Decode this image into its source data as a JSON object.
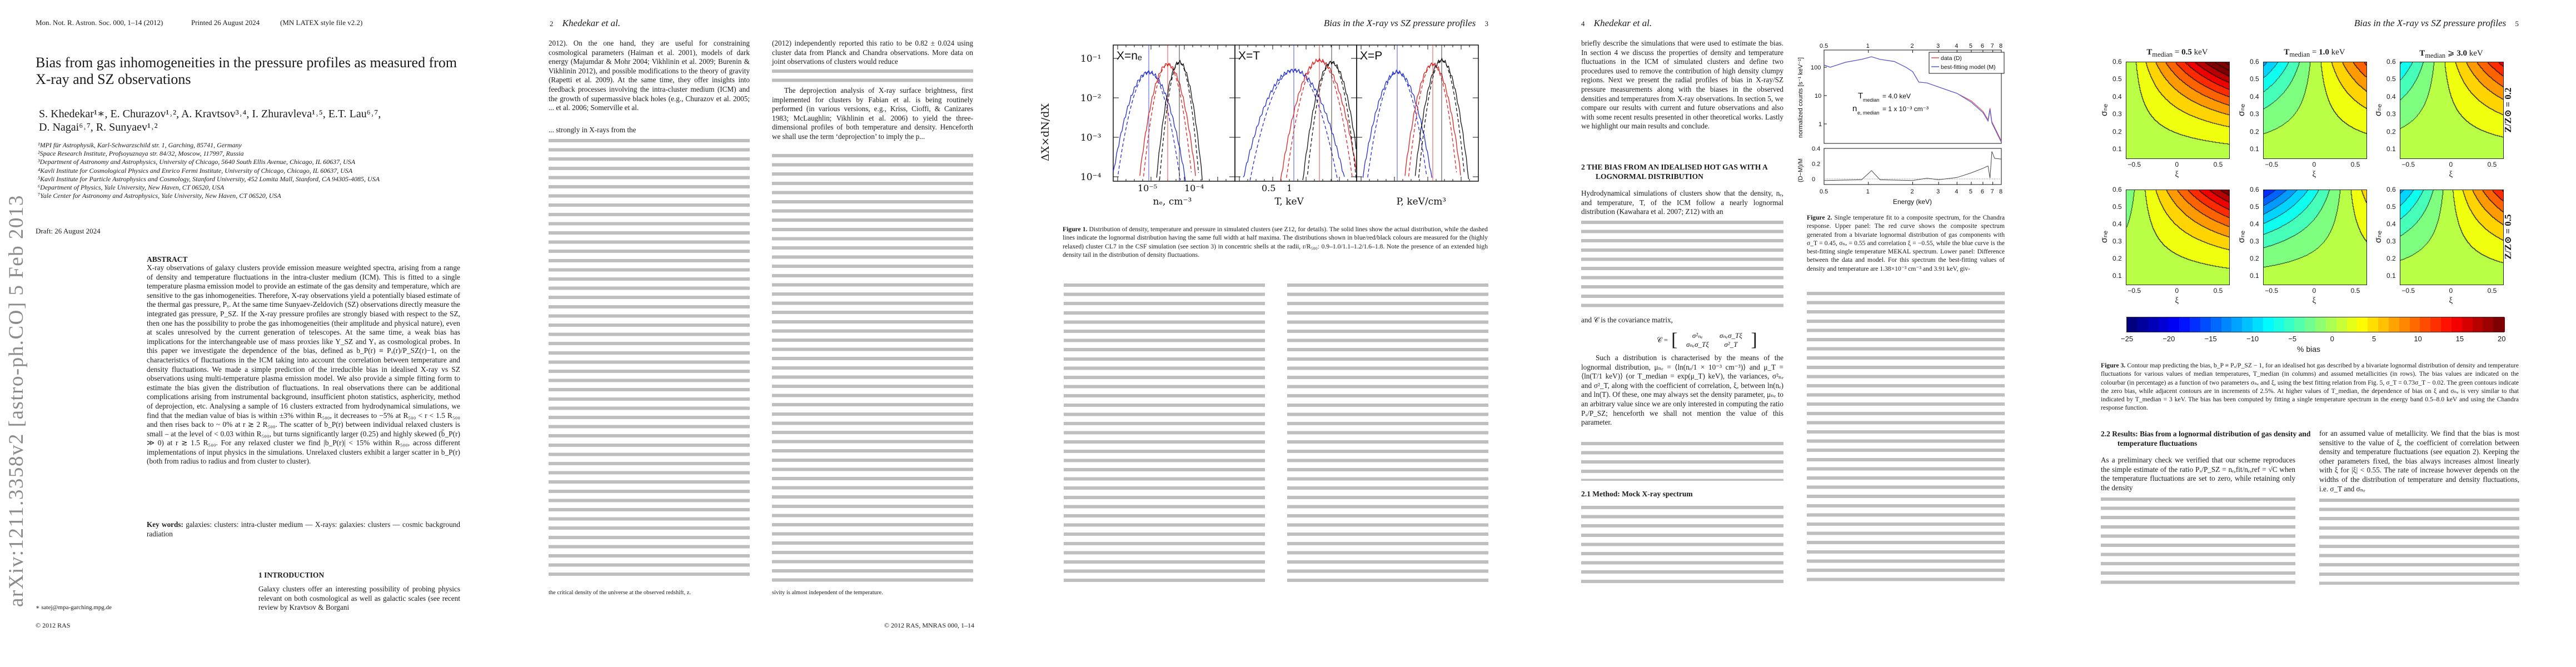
{
  "page1": {
    "journal_line": "Mon. Not. R. Astron. Soc. 000, 1–14 (2012)",
    "printed": "Printed 26 August 2024",
    "style": "(MN LATEX style file v2.2)",
    "title": "Bias from gas inhomogeneities in the pressure profiles as measured from X-ray and SZ observations",
    "authors_line1": "S. Khedekar¹∗, E. Churazov¹˒², A. Kravtsov³˒⁴, I. Zhuravleva¹˒⁵, E.T. Lau⁶˒⁷,",
    "authors_line2": "D. Nagai⁶˒⁷, R. Sunyaev¹˒²",
    "affiliations": [
      "¹MPI für Astrophysik, Karl-Schwarzschild str. 1, Garching, 85741, Germany",
      "²Space Research Institute, Profsoyuznaya str. 84/32, Moscow, 117997, Russia",
      "³Department of Astronomy and Astrophysics, University of Chicago, 5640 South Ellis Avenue, Chicago, IL 60637, USA",
      "⁴Kavli Institute for Cosmological Physics and Enrico Fermi Institute, University of Chicago, Chicago, IL 60637, USA",
      "⁵Kavli Institute for Particle Astrophysics and Cosmology, Stanford University, 452 Lomita Mall, Stanford, CA 94305-4085, USA",
      "⁶Department of Physics, Yale University, New Haven, CT 06520, USA",
      "⁷Yale Center for Astronomy and Astrophysics, Yale University, New Haven, CT 06520, USA"
    ],
    "draft": "Draft: 26 August 2024",
    "arxiv_stamp": "arXiv:1211.3358v2  [astro-ph.CO]  5 Feb 2013",
    "abstract_heading": "ABSTRACT",
    "abstract": "X-ray observations of galaxy clusters provide emission measure weighted spectra, arising from a range of density and temperature fluctuations in the intra-cluster medium (ICM). This is fitted to a single temperature plasma emission model to provide an estimate of the gas density and temperature, which are sensitive to the gas inhomogeneities. Therefore, X-ray observations yield a potentially biased estimate of the thermal gas pressure, Pₓ. At the same time Sunyaev-Zeldovich (SZ) observations directly measure the integrated gas pressure, P_SZ. If the X-ray pressure profiles are strongly biased with respect to the SZ, then one has the possibility to probe the gas inhomogeneities (their amplitude and physical nature), even at scales unresolved by the current generation of telescopes. At the same time, a weak bias has implications for the interchangeable use of mass proxies like Y_SZ and Yₓ as cosmological probes. In this paper we investigate the dependence of the bias, defined as b_P(r) ≡ Pₓ(r)/P_SZ(r)−1, on the characteristics of fluctuations in the ICM taking into account the correlation between temperature and density fluctuations. We made a simple prediction of the irreducible bias in idealised X-ray vs SZ observations using multi-temperature plasma emission model. We also provide a simple fitting form to estimate the bias given the distribution of fluctuations. In real observations there can be additional complications arising from instrumental background, insufficient photon statistics, asphericity, method of deprojection, etc. Analysing a sample of 16 clusters extracted from hydrodynamical simulations, we find that the median value of bias is within ±3% within R₅₀₀, it decreases to −5% at R₅₀₀ < r < 1.5 R₅₀₀ and then rises back to ~ 0% at r ≳ 2 R₅₀₀. The scatter of b_P(r) between individual relaxed clusters is small – at the level of < 0.03 within R₅₀₀, but turns significantly larger (0.25) and highly skewed (b̄_P(r) ≫ 0) at r ≳ 1.5 R₅₀₀. For any relaxed cluster we find |b_P(r)| < 15% within R₅₀₀, across different implementations of input physics in the simulations. Unrelaxed clusters exhibit a larger scatter in b_P(r) (both from radius to radius and from cluster to cluster).",
    "keywords_label": "Key words:",
    "keywords": "galaxies: clusters: intra-cluster medium — X-rays: galaxies: clusters — cosmic background radiation",
    "intro_heading": "1   INTRODUCTION",
    "intro_text": "Galaxy clusters offer an interesting possibility of probing physics relevant on both cosmological as well as galactic scales (see recent review by Kravtsov & Borgani",
    "email": "∗ satej@mpa-garching.mpg.de",
    "copyright": "© 2012 RAS"
  },
  "page2": {
    "page_number": "2",
    "running_head": "Khedekar et al.",
    "left_col": "2012). On the one hand, they are useful for constraining cosmological parameters (Haiman et al. 2001), models of dark energy (Majumdar & Mohr 2004; Vikhlinin et al. 2009; Burenin & Vikhlinin 2012), and possible modifications to the theory of gravity (Rapetti et al. 2009). At the same time, they offer insights into feedback processes involving the intra-cluster medium (ICM) and the growth of supermassive black holes (e.g., Churazov et al. 2005; ... et al. 2006; Somerville et al.",
    "left_col_2": "... strongly in X-rays from the",
    "right_col": "(2012) independently reported this ratio to be 0.82 ± 0.024 using cluster data from Planck and Chandra observations. More data on joint observations of clusters would reduce",
    "right_col_2": "The deprojection analysis of X-ray surface brightness, first implemented for clusters by Fabian et al. is being routinely performed (in various versions, e.g., Kriss, Cioffi, & Canizares 1983; McLaughlin; Vikhlinin et al. 2006) to yield the three-dimensional profiles of both temperature and density. Henceforth we shall use the term ‘deprojection’ to imply the p...",
    "footnote_left": "the critical density of the universe at the observed redshift, z.",
    "footnote_right": "sivity is almost independent of the temperature.",
    "footer": "© 2012 RAS, MNRAS 000, 1–14"
  },
  "page3": {
    "running_head": "Bias in the X-ray vs SZ pressure profiles",
    "page_number": "3",
    "figure1": {
      "ylabel": "ΔX×dN/dX",
      "yticks": [
        "10⁻¹",
        "10⁻²",
        "10⁻³",
        "10⁻⁴"
      ],
      "panels": [
        {
          "label": "X=nₑ",
          "xlabel": "nₑ, cm⁻³",
          "xticks": [
            "10⁻⁵",
            "10⁻⁴"
          ]
        },
        {
          "label": "X=T",
          "xlabel": "T, keV",
          "xticks": [
            "0.5",
            "1"
          ]
        },
        {
          "label": "X=P",
          "xlabel": "P, keV/cm³",
          "xticks": []
        }
      ],
      "series_colors": [
        "#1f2bd6",
        "#e0201e",
        "#111111"
      ],
      "caption_label": "Figure 1.",
      "caption": "Distribution of density, temperature and pressure in simulated clusters (see Z12, for details). The solid lines show the actual distribution, while the dashed lines indicate the lognormal distribution having the same full width at half maxima. The distributions shown in blue/red/black colours are measured for the (highly relaxed) cluster CL7 in the CSF simulation (see section 3) in concentric shells at the radii, r/R₅₀₀: 0.9–1.0/1.1–1.2/1.6–1.8. Note the presence of an extended high density tail in the distribution of density fluctuations."
    }
  },
  "page4": {
    "page_number": "4",
    "running_head": "Khedekar et al.",
    "left_intro": "briefly describe the simulations that were used to estimate the bias. In section 4 we discuss the properties of density and temperature fluctuations in the ICM of simulated clusters and define two procedures used to remove the contribution of high density clumpy regions. Next we present the radial profiles of bias in X-ray/SZ pressure measurements along with the biases in the observed densities and temperatures from X-ray observations. In section 5, we compare our results with current and future observations and also with some recent results presented in other theoretical works. Lastly we highlight our main results and conclude.",
    "section2_heading": "2   THE BIAS FROM AN IDEALISED HOT GAS WITH A LOGNORMAL DISTRIBUTION",
    "section2_text": "Hydrodynamical simulations of clusters show that the density, nₑ, and temperature, T, of the ICM follow a nearly lognormal distribution (Kawahara et al. 2007; Z12) with an",
    "covariance_text": "and 𝒞 is the covariance matrix,",
    "matrix": [
      "σ²ₙₑ",
      "σₙₑσ_Tξ",
      "σₙₑσ_Tξ",
      "σ²_T"
    ],
    "matrix_lhs": "𝒞 =",
    "distribution_text": "Such a distribution is characterised by the means of the lognormal distribution, μₙₑ = ⟨ln(nₑ/1 × 10⁻³ cm⁻³)⟩ and μ_T = ⟨ln(T/1 keV)⟩ (or T_median = exp(μ_T) keV), the variances, σ²ₙₑ and σ²_T, along with the coefficient of correlation, ξ, between ln(nₑ) and ln(T). Of these, one may always set the density parameter, μₙₑ to an arbitrary value since we are only interested in computing the ratio Pₓ/P_SZ; henceforth we shall not mention the value of this parameter.",
    "subsection_heading": "2.1   Method: Mock X-ray spectrum",
    "figure2": {
      "xticks": [
        "0.5",
        "1",
        "2",
        "3",
        "4",
        "5",
        "6",
        "7",
        "8"
      ],
      "yticks": [
        "100",
        "10",
        "1"
      ],
      "ylabel": "normalized counts [s⁻¹ keV⁻¹]",
      "resid_yticks": [
        "0.4",
        "0.2",
        "0"
      ],
      "resid_ylabel": "(D−M)/M",
      "xlabel": "Energy (keV)",
      "legend": [
        "data (D)",
        "best-fitting model (M)"
      ],
      "legend_colors": [
        "#e8474a",
        "#4a5de0"
      ],
      "annotation_T": "T",
      "annotation_T_sub": "median",
      "annotation_T_val": "= 4.0 keV",
      "annotation_n": "n",
      "annotation_n_sub": "e, median",
      "annotation_n_val": "= 1 x 10⁻³ cm⁻³",
      "caption_label": "Figure 2.",
      "caption": "Single temperature fit to a composite spectrum, for the Chandra response. Upper panel: The red curve shows the composite spectrum generated from a bivariate lognormal distribution of gas components with σ_T = 0.45, σₙₑ = 0.55 and correlation ξ = −0.55, while the blue curve is the best-fitting single temperature MEKAL spectrum. Lower panel: Difference between the data and model. For this spectrum the best-fitting values of density and temperature are 1.38×10⁻³ cm⁻³ and 3.91 keV, giv-"
    }
  },
  "page5": {
    "running_head": "Bias in the X-ray vs SZ pressure profiles",
    "page_number": "5",
    "figure3": {
      "column_titles": [
        {
          "t": "T",
          "sub": "median",
          "rel": "=",
          "val": "0.5",
          "unit": "keV"
        },
        {
          "t": "T",
          "sub": "median",
          "rel": "=",
          "val": "1.0",
          "unit": "keV"
        },
        {
          "t": "T",
          "sub": "median",
          "rel": "⩾",
          "val": "3.0",
          "unit": "keV"
        }
      ],
      "row_labels": [
        "Z/Z⊙ = 0.2",
        "Z/Z⊙ = 0.5"
      ],
      "ylabel": "σₙₑ",
      "xlabel": "ξ",
      "yticks": [
        "0.6",
        "0.5",
        "0.4",
        "0.3",
        "0.2",
        "0.1"
      ],
      "xticks": [
        "−0.5",
        "0",
        "0.5"
      ],
      "colorbar_ticks": [
        "−25",
        "−20",
        "−15",
        "−10",
        "−5",
        "0",
        "5",
        "10",
        "15",
        "20"
      ],
      "colorbar_range": [
        -25,
        20
      ],
      "contour_step_percent": 2.5,
      "colorbar_label": "% bias",
      "colormap": "jet",
      "caption_label": "Figure 3.",
      "caption": "Contour map predicting the bias, b_P ≡ Pₓ/P_SZ − 1, for an idealised hot gas described by a bivariate lognormal distribution of density and temperature fluctuations for various values of median temperatures, T_median (in columns) and assumed metallicities (in rows). The bias values are indicated on the colourbar (in percentage) as a function of two parameters σₙₑ and ξ, using the best fitting relation from Fig. 5, σ_T = 0.73σ_T − 0.02. The green contours indicate the zero bias, while adjacent contours are in increments of 2.5%. At higher values of T_median, the dependence of bias on ξ and σₙₑ is very similar to that indicated by T_median = 3 keV. The bias has been computed by fitting a single temperature spectrum in the energy band 0.5–8.0 keV and using the Chandra response function."
    },
    "section22_heading": "2.2   Results: Bias from a lognormal distribution of gas density and temperature fluctuations",
    "section22_left": "As a preliminary check we verified that our scheme reproduces the simple estimate of the ratio Pₓ/P_SZ = nₑ,fit/nₑ,ref = √C when the temperature fluctuations are set to zero, while retaining only the density",
    "section22_right": "for an assumed value of metallicity. We find that the bias is most sensitive to the value of ξ, the coefficient of correlation between density and temperature fluctuations (see equation 2). Keeping the other parameters fixed, the bias always increases almost linearly with ξ for |ξ| < 0.55. The rate of increase however depends on the widths of the distribution of temperature and density fluctuations, i.e. σ_T and σₙₑ"
  }
}
